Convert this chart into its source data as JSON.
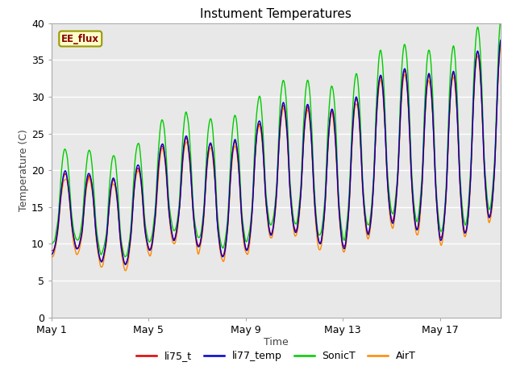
{
  "title": "Instument Temperatures",
  "xlabel": "Time",
  "ylabel": "Temperature (C)",
  "ylim": [
    0,
    40
  ],
  "xlim_days": [
    0,
    18.5
  ],
  "xticks_days": [
    0,
    4,
    8,
    12,
    16
  ],
  "xtick_labels": [
    "May 1",
    "May 5",
    "May 9",
    "May 13",
    "May 17"
  ],
  "yticks": [
    0,
    5,
    10,
    15,
    20,
    25,
    30,
    35,
    40
  ],
  "fig_bg_color": "#ffffff",
  "plot_bg_color": "#e8e8e8",
  "grid_color": "#ffffff",
  "line_colors": {
    "li75_t": "#dd0000",
    "li77_temp": "#0000cc",
    "SonicT": "#00cc00",
    "AirT": "#ff8800"
  },
  "legend_labels": [
    "li75_t",
    "li77_temp",
    "SonicT",
    "AirT"
  ],
  "ee_flux_label": "EE_flux",
  "ee_flux_text_color": "#880000",
  "ee_flux_bg": "#ffffcc",
  "ee_flux_border": "#999900",
  "line_width": 1.0
}
